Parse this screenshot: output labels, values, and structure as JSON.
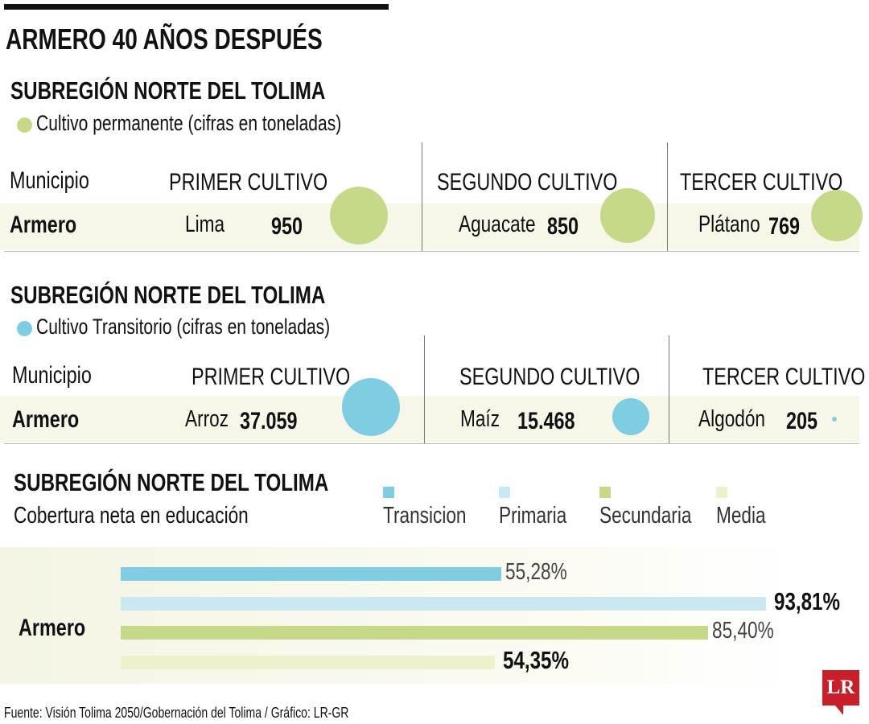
{
  "title": "ARMERO 40 AÑOS DESPUÉS",
  "colors": {
    "green": "#c5d988",
    "blue": "#7fcde3",
    "light_blue": "#cbe8f1",
    "pale_green": "#eef2cc",
    "logo_red": "#c8202a"
  },
  "permanente": {
    "heading": "SUBREGIÓN NORTE DEL TOLIMA",
    "legend": "Cultivo permanente (cifras en toneladas)",
    "col_municipio": "Municipio",
    "col_primer": "PRIMER CULTIVO",
    "col_segundo": "SEGUNDO CULTIVO",
    "col_tercer": "TERCER CULTIVO",
    "municipio": "Armero",
    "crops": [
      {
        "name": "Lima",
        "value_label": "950",
        "value": 950
      },
      {
        "name": "Aguacate",
        "value_label": "850",
        "value": 850
      },
      {
        "name": "Plátano",
        "value_label": "769",
        "value": 769
      }
    ]
  },
  "transitorio": {
    "heading": "SUBREGIÓN NORTE DEL TOLIMA",
    "legend": "Cultivo Transitorio (cifras en toneladas)",
    "col_municipio": "Municipio",
    "col_primer": "PRIMER CULTIVO",
    "col_segundo": "SEGUNDO CULTIVO",
    "col_tercer": "TERCER CULTIVO",
    "municipio": "Armero",
    "crops": [
      {
        "name": "Arroz",
        "value_label": "37.059",
        "value": 37059
      },
      {
        "name": "Maíz",
        "value_label": "15.468",
        "value": 15468
      },
      {
        "name": "Algodón",
        "value_label": "205",
        "value": 205
      }
    ]
  },
  "chart_data": {
    "type": "bar",
    "title": "SUBREGIÓN NORTE DEL TOLIMA",
    "subtitle": "Cobertura neta en educación",
    "categories": [
      "Armero"
    ],
    "series": [
      {
        "name": "Transicion",
        "values": [
          55.28
        ],
        "label": "55,28%",
        "color": "#7fcde3"
      },
      {
        "name": "Primaria",
        "values": [
          93.81
        ],
        "label": "93,81%",
        "color": "#cbe8f1"
      },
      {
        "name": "Secundaria",
        "values": [
          85.4
        ],
        "label": "85,40%",
        "color": "#c5d988"
      },
      {
        "name": "Media",
        "values": [
          54.35
        ],
        "label": "54,35%",
        "color": "#eef2cc"
      }
    ],
    "xlim": [
      0,
      100
    ],
    "legend": "top"
  },
  "source": "Fuente: Visión Tolima 2050/Gobernación del Tolima / Gráfico: LR-GR",
  "logo": "LR"
}
